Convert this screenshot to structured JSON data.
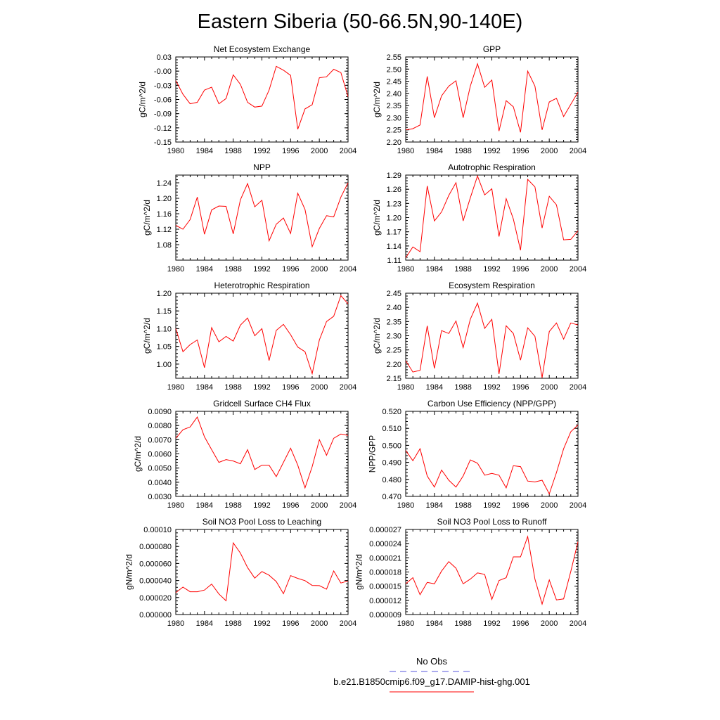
{
  "title": "Eastern Siberia (50-66.5N,90-140E)",
  "colors": {
    "series": "#ff0000",
    "obs": "#5555dd",
    "axis": "#000000"
  },
  "legend": {
    "obs_label": "No Obs",
    "model_label": "b.e21.B1850cmip6.f09_g17.DAMIP-hist-ghg.001"
  },
  "chart_data": [
    {
      "type": "line",
      "title": "Net Ecosystem Exchange",
      "ylabel": "gC/m^2/d",
      "xlabel": "",
      "ylim": [
        -0.15,
        0.03
      ],
      "yticks": [
        "0.03",
        "-0.00",
        "-0.03",
        "-0.06",
        "-0.09",
        "-0.12",
        "-0.15"
      ],
      "xticks": [
        "1980",
        "1984",
        "1988",
        "1992",
        "1996",
        "2000",
        "2004"
      ],
      "x": [
        1980,
        1981,
        1982,
        1983,
        1984,
        1985,
        1986,
        1987,
        1988,
        1989,
        1990,
        1991,
        1992,
        1993,
        1994,
        1995,
        1996,
        1997,
        1998,
        1999,
        2000,
        2001,
        2002,
        2003,
        2004
      ],
      "values": [
        -0.02,
        -0.049,
        -0.069,
        -0.066,
        -0.04,
        -0.034,
        -0.069,
        -0.058,
        -0.008,
        -0.028,
        -0.066,
        -0.076,
        -0.074,
        -0.04,
        0.01,
        0.002,
        -0.009,
        -0.123,
        -0.08,
        -0.071,
        -0.014,
        -0.012,
        0.004,
        -0.003,
        -0.054
      ]
    },
    {
      "type": "line",
      "title": "GPP",
      "ylabel": "gC/m^2/d",
      "xlabel": "",
      "ylim": [
        2.2,
        2.55
      ],
      "yticks": [
        "2.55",
        "2.50",
        "2.45",
        "2.40",
        "2.35",
        "2.30",
        "2.25",
        "2.20"
      ],
      "xticks": [
        "1980",
        "1984",
        "1988",
        "1992",
        "1996",
        "2000",
        "2004"
      ],
      "x": [
        1980,
        1981,
        1982,
        1983,
        1984,
        1985,
        1986,
        1987,
        1988,
        1989,
        1990,
        1991,
        1992,
        1993,
        1994,
        1995,
        1996,
        1997,
        1998,
        1999,
        2000,
        2001,
        2002,
        2003,
        2004
      ],
      "values": [
        2.25,
        2.255,
        2.27,
        2.47,
        2.3,
        2.39,
        2.43,
        2.452,
        2.3,
        2.43,
        2.522,
        2.425,
        2.455,
        2.245,
        2.37,
        2.345,
        2.24,
        2.492,
        2.43,
        2.25,
        2.365,
        2.38,
        2.305,
        2.355,
        2.405
      ]
    },
    {
      "type": "line",
      "title": "NPP",
      "ylabel": "gC/m^2/d",
      "xlabel": "",
      "ylim": [
        1.04,
        1.26
      ],
      "yticks": [
        "1.24",
        "1.20",
        "1.16",
        "1.12",
        "1.08"
      ],
      "xticks": [
        "1980",
        "1984",
        "1988",
        "1992",
        "1996",
        "2000",
        "2004"
      ],
      "x": [
        1980,
        1981,
        1982,
        1983,
        1984,
        1985,
        1986,
        1987,
        1988,
        1989,
        1990,
        1991,
        1992,
        1993,
        1994,
        1995,
        1996,
        1997,
        1998,
        1999,
        2000,
        2001,
        2002,
        2003,
        2004
      ],
      "values": [
        1.13,
        1.12,
        1.145,
        1.203,
        1.107,
        1.17,
        1.18,
        1.179,
        1.108,
        1.196,
        1.238,
        1.178,
        1.195,
        1.09,
        1.133,
        1.149,
        1.109,
        1.213,
        1.171,
        1.075,
        1.122,
        1.155,
        1.152,
        1.203,
        1.24
      ]
    },
    {
      "type": "line",
      "title": "Autotrophic Respiration",
      "ylabel": "gC/m^2/d",
      "xlabel": "",
      "ylim": [
        1.11,
        1.29
      ],
      "yticks": [
        "1.29",
        "1.26",
        "1.23",
        "1.20",
        "1.17",
        "1.14",
        "1.11"
      ],
      "xticks": [
        "1980",
        "1984",
        "1988",
        "1992",
        "1996",
        "2000",
        "2004"
      ],
      "x": [
        1980,
        1981,
        1982,
        1983,
        1984,
        1985,
        1986,
        1987,
        1988,
        1989,
        1990,
        1991,
        1992,
        1993,
        1994,
        1995,
        1996,
        1997,
        1998,
        1999,
        2000,
        2001,
        2002,
        2003,
        2004
      ],
      "values": [
        1.115,
        1.138,
        1.128,
        1.267,
        1.193,
        1.212,
        1.247,
        1.274,
        1.193,
        1.242,
        1.288,
        1.248,
        1.261,
        1.16,
        1.24,
        1.197,
        1.131,
        1.281,
        1.265,
        1.178,
        1.245,
        1.227,
        1.153,
        1.154,
        1.172
      ]
    },
    {
      "type": "line",
      "title": "Heterotrophic Respiration",
      "ylabel": "gC/m^2/d",
      "xlabel": "",
      "ylim": [
        0.96,
        1.2
      ],
      "yticks": [
        "1.20",
        "1.15",
        "1.10",
        "1.05",
        "1.00"
      ],
      "xticks": [
        "1980",
        "1984",
        "1988",
        "1992",
        "1996",
        "2000",
        "2004"
      ],
      "x": [
        1980,
        1981,
        1982,
        1983,
        1984,
        1985,
        1986,
        1987,
        1988,
        1989,
        1990,
        1991,
        1992,
        1993,
        1994,
        1995,
        1996,
        1997,
        1998,
        1999,
        2000,
        2001,
        2002,
        2003,
        2004
      ],
      "values": [
        1.1,
        1.035,
        1.055,
        1.068,
        0.99,
        1.103,
        1.063,
        1.078,
        1.065,
        1.11,
        1.13,
        1.08,
        1.1,
        1.01,
        1.095,
        1.112,
        1.083,
        1.048,
        1.035,
        0.973,
        1.068,
        1.12,
        1.135,
        1.193,
        1.17
      ]
    },
    {
      "type": "line",
      "title": "Ecosystem Respiration",
      "ylabel": "gC/m^2/d",
      "xlabel": "",
      "ylim": [
        2.15,
        2.45
      ],
      "yticks": [
        "2.45",
        "2.40",
        "2.35",
        "2.30",
        "2.25",
        "2.20",
        "2.15"
      ],
      "xticks": [
        "1980",
        "1984",
        "1988",
        "1992",
        "1996",
        "2000",
        "2004"
      ],
      "x": [
        1980,
        1981,
        1982,
        1983,
        1984,
        1985,
        1986,
        1987,
        1988,
        1989,
        1990,
        1991,
        1992,
        1993,
        1994,
        1995,
        1996,
        1997,
        1998,
        1999,
        2000,
        2001,
        2002,
        2003,
        2004
      ],
      "values": [
        2.212,
        2.172,
        2.178,
        2.335,
        2.185,
        2.318,
        2.308,
        2.352,
        2.258,
        2.358,
        2.415,
        2.326,
        2.358,
        2.165,
        2.335,
        2.308,
        2.214,
        2.328,
        2.298,
        2.152,
        2.315,
        2.345,
        2.288,
        2.345,
        2.338
      ]
    },
    {
      "type": "line",
      "title": "Gridcell Surface CH4 Flux",
      "ylabel": "gC/m^2/d",
      "xlabel": "",
      "ylim": [
        0.003,
        0.009
      ],
      "yticks": [
        "0.0090",
        "0.0080",
        "0.0070",
        "0.0060",
        "0.0050",
        "0.0040",
        "0.0030"
      ],
      "xticks": [
        "1980",
        "1984",
        "1988",
        "1992",
        "1996",
        "2000",
        "2004"
      ],
      "x": [
        1980,
        1981,
        1982,
        1983,
        1984,
        1985,
        1986,
        1987,
        1988,
        1989,
        1990,
        1991,
        1992,
        1993,
        1994,
        1995,
        1996,
        1997,
        1998,
        1999,
        2000,
        2001,
        2002,
        2003,
        2004
      ],
      "values": [
        0.0071,
        0.0077,
        0.0079,
        0.0086,
        0.0072,
        0.0063,
        0.0054,
        0.0056,
        0.0055,
        0.0053,
        0.0063,
        0.0049,
        0.0052,
        0.0052,
        0.0044,
        0.0054,
        0.0064,
        0.0052,
        0.0036,
        0.0051,
        0.007,
        0.0059,
        0.0071,
        0.0074,
        0.0073
      ]
    },
    {
      "type": "line",
      "title": "Carbon Use Efficiency (NPP/GPP)",
      "ylabel": "NPP/GPP",
      "xlabel": "",
      "ylim": [
        0.47,
        0.52
      ],
      "yticks": [
        "0.520",
        "0.510",
        "0.500",
        "0.490",
        "0.480",
        "0.470"
      ],
      "xticks": [
        "1980",
        "1984",
        "1988",
        "1992",
        "1996",
        "2000",
        "2004"
      ],
      "x": [
        1980,
        1981,
        1982,
        1983,
        1984,
        1985,
        1986,
        1987,
        1988,
        1989,
        1990,
        1991,
        1992,
        1993,
        1994,
        1995,
        1996,
        1997,
        1998,
        1999,
        2000,
        2001,
        2002,
        2003,
        2004
      ],
      "values": [
        0.497,
        0.491,
        0.498,
        0.482,
        0.4755,
        0.4855,
        0.4795,
        0.4755,
        0.482,
        0.4915,
        0.4895,
        0.4825,
        0.4835,
        0.4825,
        0.475,
        0.488,
        0.4875,
        0.479,
        0.4785,
        0.4795,
        0.4715,
        0.484,
        0.498,
        0.508,
        0.512
      ]
    },
    {
      "type": "line",
      "title": "Soil NO3 Pool Loss to Leaching",
      "ylabel": "gN/m^2/d",
      "xlabel": "",
      "ylim": [
        0,
        0.0001
      ],
      "yticks": [
        "0.00010",
        "0.000080",
        "0.000060",
        "0.000040",
        "0.000020",
        "0.000000"
      ],
      "xticks": [
        "1980",
        "1984",
        "1988",
        "1992",
        "1996",
        "2000",
        "2004"
      ],
      "x": [
        1980,
        1981,
        1982,
        1983,
        1984,
        1985,
        1986,
        1987,
        1988,
        1989,
        1990,
        1991,
        1992,
        1993,
        1994,
        1995,
        1996,
        1997,
        1998,
        1999,
        2000,
        2001,
        2002,
        2003,
        2004
      ],
      "values": [
        2.58e-05,
        3.22e-05,
        2.68e-05,
        2.68e-05,
        2.88e-05,
        3.58e-05,
        2.42e-05,
        1.62e-05,
        8.42e-05,
        7.22e-05,
        5.52e-05,
        4.28e-05,
        5.05e-05,
        4.62e-05,
        3.88e-05,
        2.45e-05,
        4.58e-05,
        4.25e-05,
        3.98e-05,
        3.42e-05,
        3.4e-05,
        2.98e-05,
        5.12e-05,
        3.7e-05,
        3.95e-05
      ]
    },
    {
      "type": "line",
      "title": "Soil NO3 Pool Loss to Runoff",
      "ylabel": "gN/m^2/d",
      "xlabel": "",
      "ylim": [
        9e-06,
        2.7e-05
      ],
      "yticks": [
        "0.000027",
        "0.000024",
        "0.000021",
        "0.000018",
        "0.000015",
        "0.000012",
        "0.000009"
      ],
      "xticks": [
        "1980",
        "1984",
        "1988",
        "1992",
        "1996",
        "2000",
        "2004"
      ],
      "x": [
        1980,
        1981,
        1982,
        1983,
        1984,
        1985,
        1986,
        1987,
        1988,
        1989,
        1990,
        1991,
        1992,
        1993,
        1994,
        1995,
        1996,
        1997,
        1998,
        1999,
        2000,
        2001,
        2002,
        2003,
        2004
      ],
      "values": [
        1.55e-05,
        1.68e-05,
        1.32e-05,
        1.58e-05,
        1.55e-05,
        1.82e-05,
        2.02e-05,
        1.88e-05,
        1.55e-05,
        1.65e-05,
        1.78e-05,
        1.75e-05,
        1.22e-05,
        1.62e-05,
        1.68e-05,
        2.12e-05,
        2.12e-05,
        2.55e-05,
        1.65e-05,
        1.12e-05,
        1.63e-05,
        1.21e-05,
        1.23e-05,
        1.81e-05,
        2.44e-05
      ]
    }
  ]
}
